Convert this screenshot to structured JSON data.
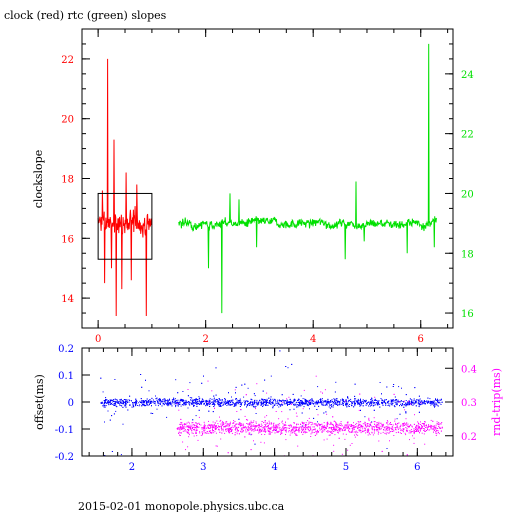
{
  "title": "clock (red) rtc (green) slopes",
  "footer": "2015-02-01 monopole.physics.ubc.ca",
  "colors": {
    "clock": "#ff0000",
    "rtc": "#00e000",
    "offset": "#0000ff",
    "rndtrip": "#ff00ff",
    "frame": "#000000"
  },
  "chart_data": [
    {
      "type": "line",
      "title": "clock (red) rtc (green) slopes",
      "ylabel": "clockslope",
      "x_ticks": [
        "0",
        "2",
        "4",
        "6"
      ],
      "xlim": [
        -0.3,
        6.6
      ],
      "ylim_left": [
        13,
        23
      ],
      "ylim_right": [
        15.5,
        25.5
      ],
      "y_ticks_left": [
        "14",
        "16",
        "18",
        "20",
        "22"
      ],
      "y_ticks_right": [
        "16",
        "18",
        "20",
        "22",
        "24"
      ],
      "grid": false,
      "series": [
        {
          "name": "clock",
          "axis": "left",
          "color": "#ff0000",
          "x_range": [
            0,
            1.0
          ],
          "baseline": 16.5,
          "noise": 0.35,
          "spikes": [
            {
              "x": 0.18,
              "y": 22.0
            },
            {
              "x": 0.12,
              "y": 14.5
            },
            {
              "x": 0.3,
              "y": 19.3
            },
            {
              "x": 0.34,
              "y": 13.4
            },
            {
              "x": 0.44,
              "y": 14.3
            },
            {
              "x": 0.52,
              "y": 18.2
            },
            {
              "x": 0.62,
              "y": 14.6
            },
            {
              "x": 0.72,
              "y": 17.8
            },
            {
              "x": 0.9,
              "y": 13.4
            },
            {
              "x": 0.08,
              "y": 17.6
            },
            {
              "x": 0.25,
              "y": 15.0
            }
          ],
          "box": {
            "x": [
              0.0,
              1.0
            ],
            "y": [
              15.3,
              17.5
            ]
          }
        },
        {
          "name": "rtc",
          "axis": "right",
          "color": "#00e000",
          "x_range": [
            1.5,
            6.3
          ],
          "baseline": 19.0,
          "noise": 0.22,
          "spikes": [
            {
              "x": 1.52,
              "y": 20.2
            },
            {
              "x": 2.05,
              "y": 17.5
            },
            {
              "x": 2.3,
              "y": 16.0
            },
            {
              "x": 2.45,
              "y": 20.0
            },
            {
              "x": 2.62,
              "y": 19.8
            },
            {
              "x": 2.95,
              "y": 18.2
            },
            {
              "x": 4.6,
              "y": 17.8
            },
            {
              "x": 4.95,
              "y": 18.4
            },
            {
              "x": 4.8,
              "y": 20.4
            },
            {
              "x": 5.75,
              "y": 18.0
            },
            {
              "x": 6.15,
              "y": 25.0
            },
            {
              "x": 6.25,
              "y": 18.2
            }
          ]
        }
      ]
    },
    {
      "type": "scatter",
      "ylabel_left": "offset(ms)",
      "ylabel_right": "rnd-trip(ms)",
      "x_ticks": [
        "2",
        "3",
        "4",
        "5",
        "6"
      ],
      "xlim": [
        1.3,
        6.5
      ],
      "ylim_left": [
        -0.2,
        0.2
      ],
      "ylim_right": [
        0.14,
        0.46
      ],
      "y_ticks_left": [
        "-0.2",
        "-0.1",
        "0",
        "0.1",
        "0.2"
      ],
      "y_ticks_right": [
        "0.2",
        "0.3",
        "0.4"
      ],
      "grid": false,
      "series": [
        {
          "name": "offset",
          "axis": "left",
          "color": "#0000ff",
          "x_range": [
            1.55,
            6.35
          ],
          "center": 0.0,
          "spread": 0.015
        },
        {
          "name": "rnd-trip",
          "axis": "right",
          "color": "#ff00ff",
          "x_range": [
            2.62,
            6.35
          ],
          "center": 0.225,
          "spread": 0.02
        }
      ]
    }
  ]
}
